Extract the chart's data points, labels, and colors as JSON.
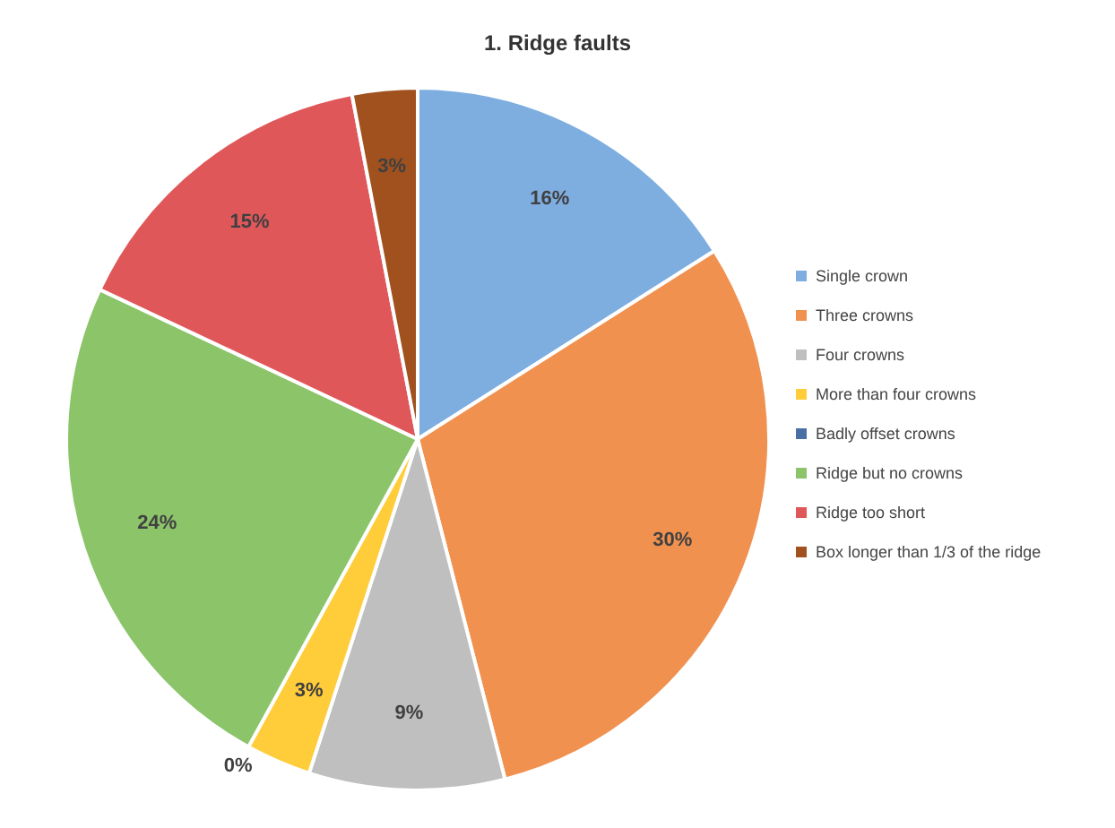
{
  "chart_data": {
    "type": "pie",
    "title": "1. Ridge faults",
    "categories": [
      "Single crown",
      "Three crowns",
      "Four crowns",
      "More than four crowns",
      "Badly offset crowns",
      "Ridge but no crowns",
      "Ridge too short",
      "Box longer than 1/3 of the ridge"
    ],
    "values": [
      16,
      30,
      9,
      3,
      0,
      24,
      15,
      3
    ],
    "value_labels": [
      "16%",
      "30%",
      "9%",
      "3%",
      "0%",
      "24%",
      "15%",
      "3%"
    ],
    "colors": [
      "#7eaee0",
      "#f0914f",
      "#bfbfbf",
      "#ffcc3a",
      "#4a6fa5",
      "#8cc46a",
      "#e0575a",
      "#a0511e"
    ],
    "legend": "right"
  }
}
